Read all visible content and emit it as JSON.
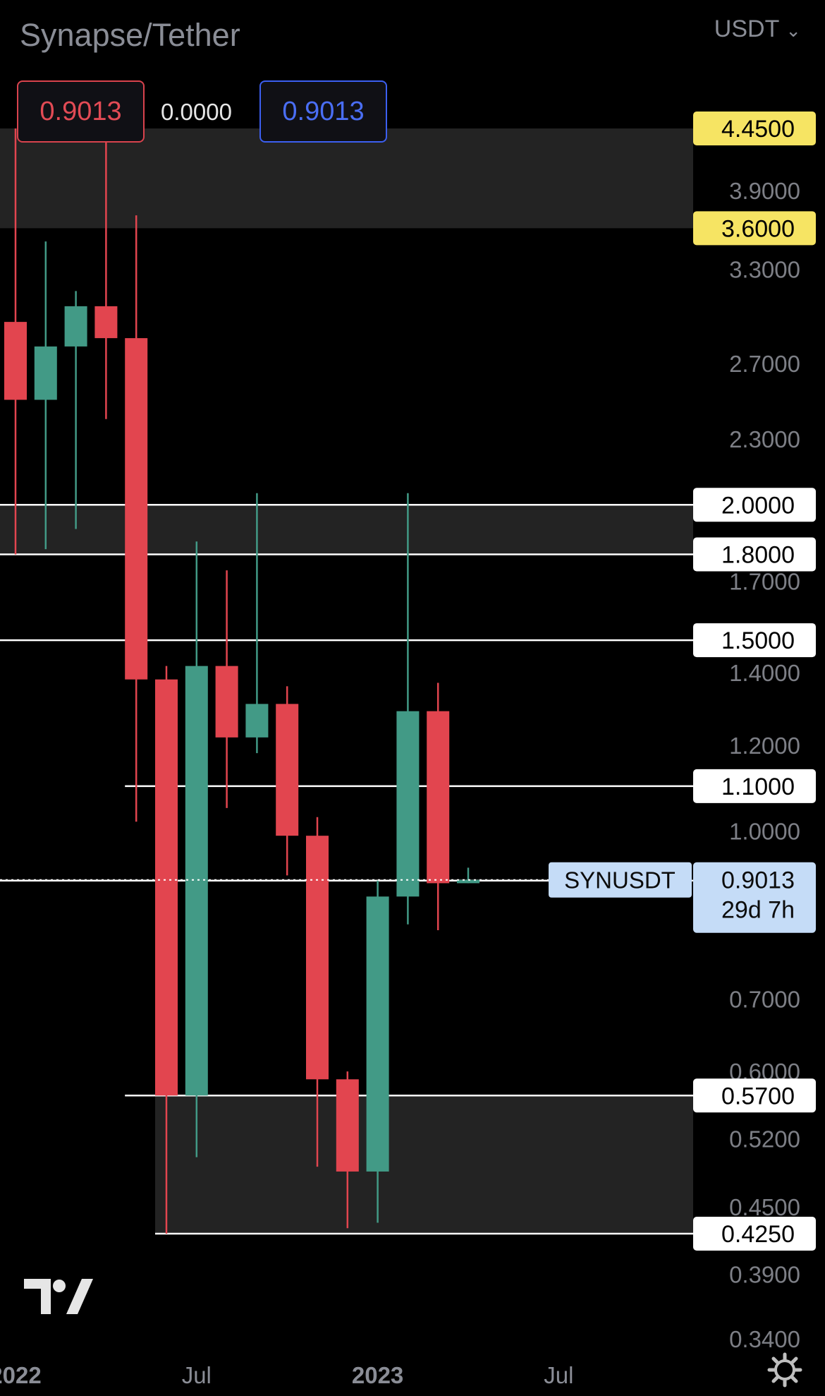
{
  "header": {
    "title": "Synapse/Tether",
    "currency": "USDT",
    "bid": "0.9013",
    "spread": "0.0000",
    "ask": "0.9013"
  },
  "symbol_label": "SYNUSDT",
  "countdown": "29d 7h",
  "colors": {
    "up": "#429a86",
    "down": "#e2454f",
    "zone": "#232323",
    "level_line": "#ffffff",
    "yellow_label": "#f6e463",
    "price_label": "#c5dcf7"
  },
  "icons": {
    "logo": "tradingview-logo-icon",
    "settings": "gear-icon"
  },
  "chart_data": {
    "type": "candlestick",
    "y_scale": "log",
    "ylim": [
      0.33,
      5.2
    ],
    "y_ticks": [
      "3.9000",
      "3.3000",
      "2.7000",
      "2.3000",
      "1.7000",
      "1.4000",
      "1.2000",
      "1.0000",
      "0.7000",
      "0.6000",
      "0.5200",
      "0.4500",
      "0.3900",
      "0.3400"
    ],
    "x_labels": [
      {
        "label": "2022",
        "month": 0
      },
      {
        "label": "Jul",
        "month": 6
      },
      {
        "label": "2023",
        "month": 12
      },
      {
        "label": "Jul",
        "month": 18
      }
    ],
    "candles": [
      {
        "month": 0,
        "open": 2.95,
        "high": 4.45,
        "low": 1.8,
        "close": 2.5
      },
      {
        "month": 1,
        "open": 2.5,
        "high": 3.5,
        "low": 1.82,
        "close": 2.8
      },
      {
        "month": 2,
        "open": 2.8,
        "high": 3.15,
        "low": 1.9,
        "close": 3.05
      },
      {
        "month": 3,
        "open": 3.05,
        "high": 4.45,
        "low": 2.4,
        "close": 2.85
      },
      {
        "month": 4,
        "open": 2.85,
        "high": 3.7,
        "low": 1.02,
        "close": 1.38
      },
      {
        "month": 5,
        "open": 1.38,
        "high": 1.42,
        "low": 0.425,
        "close": 0.57
      },
      {
        "month": 6,
        "open": 0.57,
        "high": 1.85,
        "low": 0.5,
        "close": 1.42
      },
      {
        "month": 7,
        "open": 1.42,
        "high": 1.74,
        "low": 1.05,
        "close": 1.22
      },
      {
        "month": 8,
        "open": 1.22,
        "high": 2.05,
        "low": 1.18,
        "close": 1.31
      },
      {
        "month": 9,
        "open": 1.31,
        "high": 1.36,
        "low": 0.91,
        "close": 0.99
      },
      {
        "month": 10,
        "open": 0.99,
        "high": 1.03,
        "low": 0.49,
        "close": 0.59
      },
      {
        "month": 11,
        "open": 0.59,
        "high": 0.6,
        "low": 0.43,
        "close": 0.485
      },
      {
        "month": 12,
        "open": 0.485,
        "high": 0.9,
        "low": 0.435,
        "close": 0.87
      },
      {
        "month": 13,
        "open": 0.87,
        "high": 2.05,
        "low": 0.82,
        "close": 1.29
      },
      {
        "month": 14,
        "open": 1.29,
        "high": 1.37,
        "low": 0.81,
        "close": 0.895
      },
      {
        "month": 15,
        "open": 0.895,
        "high": 0.925,
        "low": 0.895,
        "close": 0.9013
      }
    ],
    "levels": [
      {
        "price": 4.45,
        "label": "4.4500",
        "style": "yellow",
        "line": false
      },
      {
        "price": 3.6,
        "label": "3.6000",
        "style": "yellow",
        "line": false
      },
      {
        "price": 2.0,
        "label": "2.0000",
        "style": "white",
        "line": true,
        "from_month": -2
      },
      {
        "price": 1.8,
        "label": "1.8000",
        "style": "white",
        "line": true,
        "from_month": -2
      },
      {
        "price": 1.5,
        "label": "1.5000",
        "style": "white",
        "line": true,
        "from_month": -2
      },
      {
        "price": 1.1,
        "label": "1.1000",
        "style": "white",
        "line": true,
        "from_month": 4
      },
      {
        "price": 0.9,
        "label": "0.9000",
        "style": "white",
        "line": true,
        "from_month": -2
      },
      {
        "price": 0.57,
        "label": "0.5700",
        "style": "white",
        "line": true,
        "from_month": 4
      },
      {
        "price": 0.425,
        "label": "0.4250",
        "style": "white",
        "line": true,
        "from_month": 5
      }
    ],
    "zones": [
      {
        "top": 4.45,
        "bottom": 3.6,
        "from_month": -2
      },
      {
        "top": 2.0,
        "bottom": 1.8,
        "from_month": -2
      },
      {
        "top": 0.57,
        "bottom": 0.425,
        "from_month": 5
      }
    ],
    "last_price": {
      "price": 0.9013,
      "label": "0.9013"
    }
  }
}
